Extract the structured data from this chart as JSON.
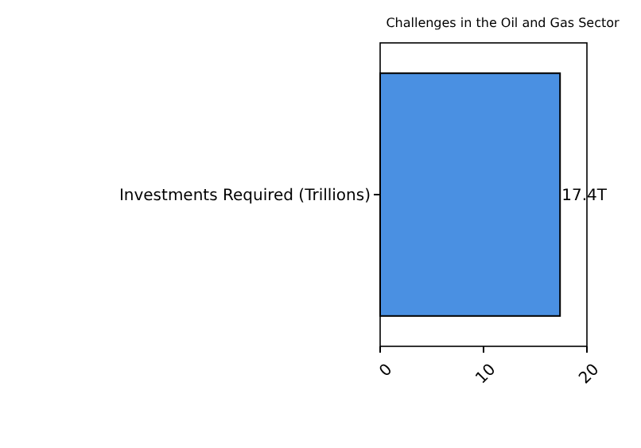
{
  "chart_data": {
    "type": "bar",
    "orientation": "horizontal",
    "title": "Challenges in the Oil and Gas Sector",
    "categories": [
      "Investments Required (Trillions)"
    ],
    "values": [
      17.4
    ],
    "value_labels": [
      "17.4T"
    ],
    "color": "#4a90e2",
    "xlim": [
      0,
      20
    ],
    "xticks": [
      0,
      10,
      20
    ],
    "grid": false
  }
}
